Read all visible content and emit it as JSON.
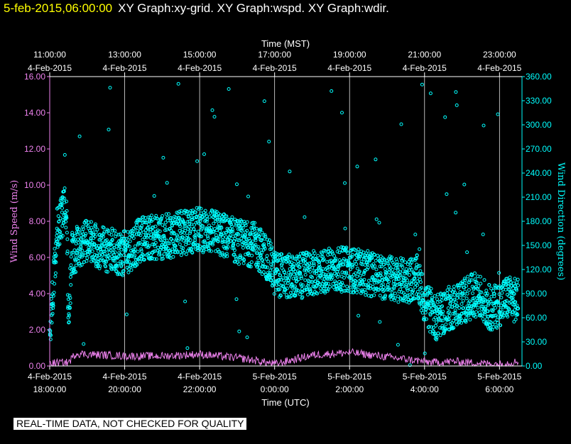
{
  "header": {
    "timestamp": "5-feb-2015,06:00:00",
    "title": "XY Graph:xy-grid.  XY Graph:wspd.  XY Graph:wdir."
  },
  "notice": "REAL-TIME DATA, NOT CHECKED FOR QUALITY",
  "colors": {
    "background": "#000000",
    "wind_speed": "#ee82ee",
    "wind_direction": "#00ffff",
    "grid": "#ffffff",
    "timestamp": "#ffff00"
  },
  "chart_data": {
    "type": "scatter",
    "top_axis": {
      "label": "Time (MST)",
      "ticks": [
        {
          "time": "11:00:00",
          "date": "4-Feb-2015",
          "hour": 18
        },
        {
          "time": "13:00:00",
          "date": "4-Feb-2015",
          "hour": 20
        },
        {
          "time": "15:00:00",
          "date": "4-Feb-2015",
          "hour": 22
        },
        {
          "time": "17:00:00",
          "date": "4-Feb-2015",
          "hour": 24
        },
        {
          "time": "19:00:00",
          "date": "4-Feb-2015",
          "hour": 26
        },
        {
          "time": "21:00:00",
          "date": "4-Feb-2015",
          "hour": 28
        },
        {
          "time": "23:00:00",
          "date": "4-Feb-2015",
          "hour": 30
        }
      ]
    },
    "bottom_axis": {
      "label": "Time (UTC)",
      "ticks": [
        {
          "date": "4-Feb-2015",
          "time": "18:00:00",
          "hour": 18
        },
        {
          "date": "4-Feb-2015",
          "time": "20:00:00",
          "hour": 20
        },
        {
          "date": "4-Feb-2015",
          "time": "22:00:00",
          "hour": 22
        },
        {
          "date": "5-Feb-2015",
          "time": "0:00:00",
          "hour": 24
        },
        {
          "date": "5-Feb-2015",
          "time": "2:00:00",
          "hour": 26
        },
        {
          "date": "5-Feb-2015",
          "time": "4:00:00",
          "hour": 28
        },
        {
          "date": "5-Feb-2015",
          "time": "6:00:00",
          "hour": 30
        }
      ],
      "xlim": [
        18,
        30.6
      ]
    },
    "left_axis": {
      "label": "Wind Speed (m/s)",
      "ylim": [
        0,
        16
      ],
      "ticks": [
        "0.00",
        "2.00",
        "4.00",
        "6.00",
        "8.00",
        "10.00",
        "12.00",
        "14.00",
        "16.00"
      ]
    },
    "right_axis": {
      "label": "Wind Direction (degrees)",
      "ylim": [
        0,
        360
      ],
      "ticks": [
        "0.00",
        "30.00",
        "60.00",
        "90.00",
        "120.00",
        "150.00",
        "180.00",
        "210.00",
        "240.00",
        "270.00",
        "300.00",
        "330.00",
        "360.00"
      ]
    },
    "series": [
      {
        "axis": "left",
        "kind": "line",
        "x": [
          18.0,
          18.5,
          18.7,
          19.0,
          20.0,
          21.0,
          22.0,
          23.0,
          23.5,
          24.0,
          24.5,
          25.0,
          26.0,
          27.0,
          27.8,
          28.2,
          28.8,
          29.5,
          30.0,
          30.5
        ],
        "y": [
          0.15,
          0.2,
          0.7,
          0.65,
          0.55,
          0.55,
          0.65,
          0.45,
          0.3,
          0.1,
          0.35,
          0.6,
          0.75,
          0.5,
          0.3,
          0.2,
          0.25,
          0.15,
          0.1,
          0.25
        ],
        "noise": 0.22
      },
      {
        "axis": "right",
        "kind": "scatter",
        "x": [
          18.0,
          18.2,
          18.45,
          18.5,
          18.6,
          18.8,
          19.0,
          19.5,
          20.0,
          20.5,
          21.0,
          21.5,
          22.0,
          22.5,
          23.0,
          23.5,
          23.8,
          24.0,
          24.5,
          25.0,
          25.5,
          26.0,
          26.5,
          27.0,
          27.5,
          27.8,
          28.0,
          28.3,
          28.6,
          29.0,
          29.4,
          29.8,
          30.2,
          30.5
        ],
        "y": [
          40,
          170,
          200,
          60,
          140,
          150,
          155,
          145,
          140,
          160,
          160,
          165,
          170,
          165,
          155,
          150,
          135,
          115,
          110,
          115,
          120,
          120,
          115,
          110,
          105,
          110,
          80,
          60,
          70,
          80,
          90,
          70,
          85,
          80
        ],
        "noise": 28
      }
    ],
    "gridlines_x_hours": [
      18,
      20,
      22,
      24,
      26,
      28,
      30
    ],
    "legend": "none"
  }
}
